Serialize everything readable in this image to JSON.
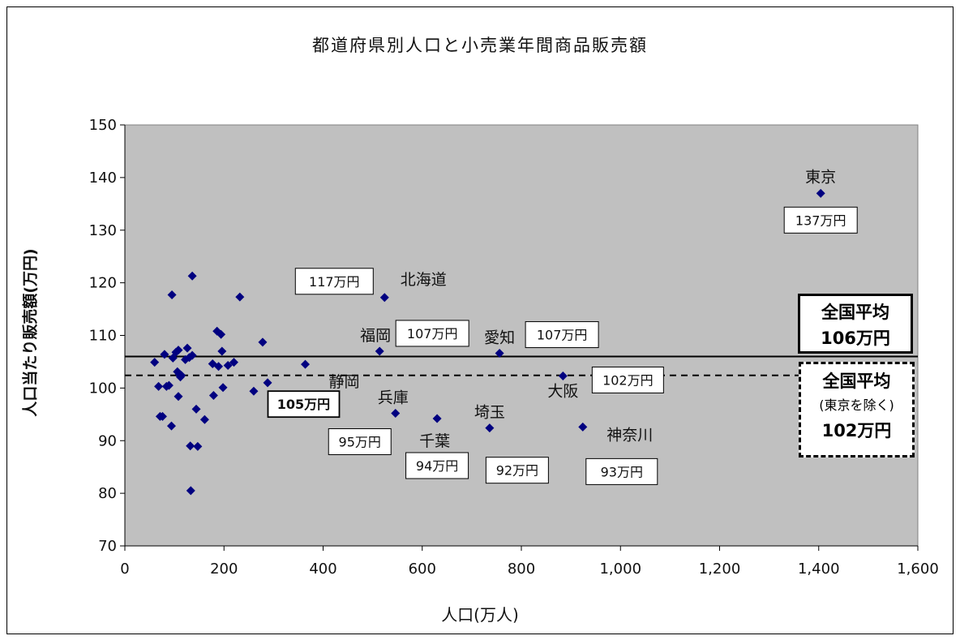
{
  "chart_data": {
    "type": "scatter",
    "title": "都道府県別人口と小売業年間商品販売額",
    "xlabel": "人口(万人)",
    "ylabel": "人口当たり販売額(万円)",
    "xlim": [
      0,
      1600
    ],
    "ylim": [
      70,
      150
    ],
    "x_ticks": [
      "0",
      "200",
      "400",
      "600",
      "800",
      "1,000",
      "1,200",
      "1,400",
      "1,600"
    ],
    "y_ticks": [
      "70",
      "80",
      "90",
      "100",
      "110",
      "120",
      "130",
      "140",
      "150"
    ],
    "grid": false,
    "background": "#c0c0c0",
    "marker_color": "#000080",
    "points": [
      {
        "x": 1404,
        "y": 137,
        "name": "東京",
        "value_label": "137万円"
      },
      {
        "x": 524,
        "y": 117.2,
        "name": "北海道",
        "value_label": "117万円"
      },
      {
        "x": 514,
        "y": 107,
        "name": "福岡",
        "value_label": "107万円"
      },
      {
        "x": 756,
        "y": 106.6,
        "name": "愛知",
        "value_label": "107万円"
      },
      {
        "x": 884,
        "y": 102.3,
        "name": "大阪",
        "value_label": "102万円"
      },
      {
        "x": 364,
        "y": 104.5,
        "name": "静岡",
        "value_label": "105万円"
      },
      {
        "x": 546,
        "y": 95.2,
        "name": "兵庫",
        "value_label": "95万円"
      },
      {
        "x": 630,
        "y": 94.2,
        "name": "千葉",
        "value_label": "94万円"
      },
      {
        "x": 736,
        "y": 92.4,
        "name": "埼玉",
        "value_label": "92万円"
      },
      {
        "x": 924,
        "y": 92.6,
        "name": "神奈川",
        "value_label": "93万円"
      },
      {
        "x": 60,
        "y": 104.9
      },
      {
        "x": 68,
        "y": 100.3
      },
      {
        "x": 71,
        "y": 94.6
      },
      {
        "x": 76,
        "y": 94.6
      },
      {
        "x": 80,
        "y": 106.4
      },
      {
        "x": 84,
        "y": 100.3
      },
      {
        "x": 89,
        "y": 100.5
      },
      {
        "x": 94,
        "y": 92.8
      },
      {
        "x": 95,
        "y": 117.7
      },
      {
        "x": 97,
        "y": 105.7
      },
      {
        "x": 103,
        "y": 106.8
      },
      {
        "x": 106,
        "y": 103.1
      },
      {
        "x": 108,
        "y": 107.2
      },
      {
        "x": 108,
        "y": 98.4
      },
      {
        "x": 110,
        "y": 102.6
      },
      {
        "x": 112,
        "y": 102.1
      },
      {
        "x": 114,
        "y": 102.4
      },
      {
        "x": 122,
        "y": 105.4
      },
      {
        "x": 126,
        "y": 107.6
      },
      {
        "x": 130,
        "y": 105.8
      },
      {
        "x": 132,
        "y": 89.0
      },
      {
        "x": 133,
        "y": 80.5
      },
      {
        "x": 136,
        "y": 106.2
      },
      {
        "x": 136,
        "y": 121.3
      },
      {
        "x": 144,
        "y": 96.0
      },
      {
        "x": 147,
        "y": 88.9
      },
      {
        "x": 161,
        "y": 94.0
      },
      {
        "x": 177,
        "y": 104.6
      },
      {
        "x": 179,
        "y": 98.6
      },
      {
        "x": 186,
        "y": 110.8
      },
      {
        "x": 189,
        "y": 104.1
      },
      {
        "x": 194,
        "y": 110.2
      },
      {
        "x": 196,
        "y": 107.0
      },
      {
        "x": 198,
        "y": 100.1
      },
      {
        "x": 208,
        "y": 104.3
      },
      {
        "x": 220,
        "y": 104.9
      },
      {
        "x": 232,
        "y": 117.3
      },
      {
        "x": 260,
        "y": 99.4
      },
      {
        "x": 278,
        "y": 108.7
      },
      {
        "x": 288,
        "y": 101.0
      }
    ],
    "reference_lines": [
      {
        "y": 106,
        "style": "solid",
        "label": [
          "全国平均",
          "106万円"
        ]
      },
      {
        "y": 102.4,
        "style": "dashed",
        "label": [
          "全国平均",
          "(東京を除く)",
          "102万円"
        ]
      }
    ]
  }
}
